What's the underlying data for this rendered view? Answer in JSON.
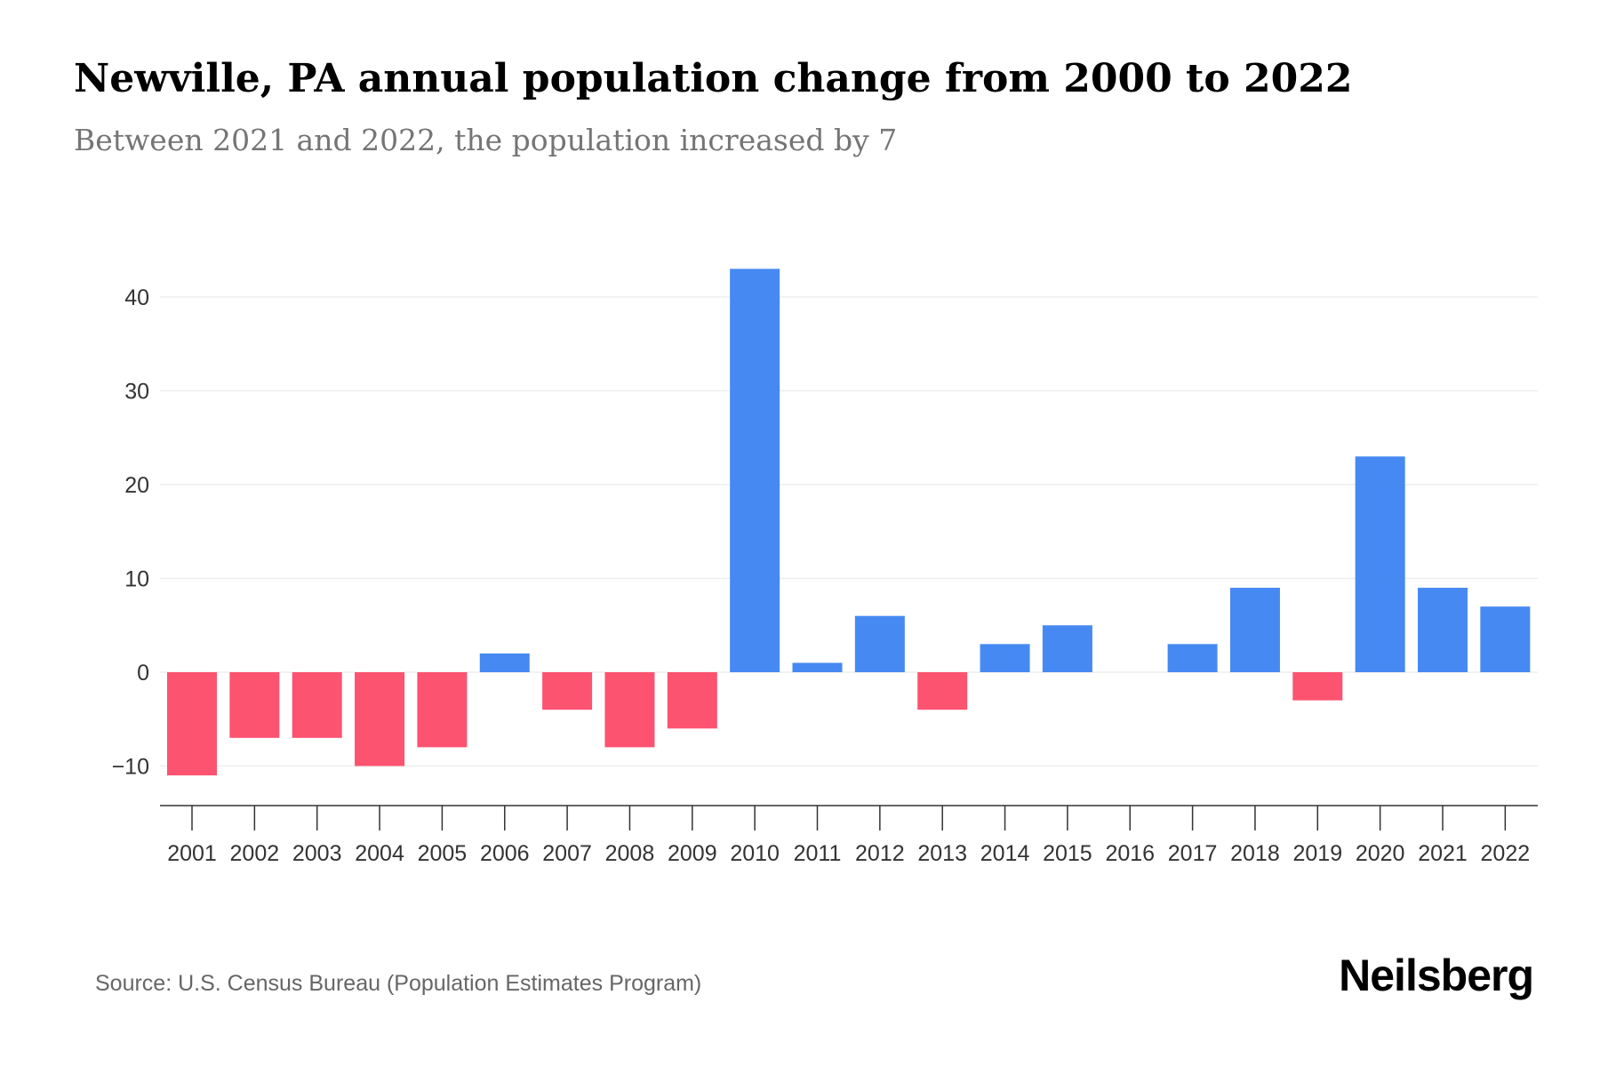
{
  "header": {
    "title": "Newville, PA annual population change from 2000 to 2022",
    "subtitle": "Between 2021 and 2022, the population increased by 7"
  },
  "footer": {
    "source": "Source: U.S. Census Bureau (Population Estimates Program)",
    "brand": "Neilsberg"
  },
  "colors": {
    "positive": "#4689F2",
    "negative": "#FC5370",
    "grid": "#EEEEEE",
    "axis": "#333333",
    "tick_label": "#333333"
  },
  "chart_data": {
    "type": "bar",
    "title": "Newville, PA annual population change from 2000 to 2022",
    "subtitle": "Between 2021 and 2022, the population increased by 7",
    "xlabel": "",
    "ylabel": "",
    "ylim": [
      -14,
      43
    ],
    "y_ticks": [
      -10,
      0,
      10,
      20,
      30,
      40
    ],
    "y_tick_labels": [
      "−10",
      "0",
      "10",
      "20",
      "30",
      "40"
    ],
    "grid": true,
    "legend": "none",
    "categories": [
      "2001",
      "2002",
      "2003",
      "2004",
      "2005",
      "2006",
      "2007",
      "2008",
      "2009",
      "2010",
      "2011",
      "2012",
      "2013",
      "2014",
      "2015",
      "2016",
      "2017",
      "2018",
      "2019",
      "2020",
      "2021",
      "2022"
    ],
    "values": [
      -11,
      -7,
      -7,
      -10,
      -8,
      2,
      -4,
      -8,
      -6,
      43,
      1,
      6,
      -4,
      3,
      5,
      0,
      3,
      9,
      -3,
      23,
      9,
      7
    ]
  }
}
